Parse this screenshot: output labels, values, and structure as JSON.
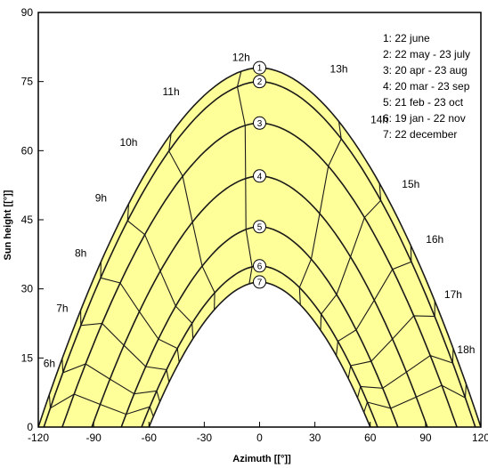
{
  "chart_data": {
    "type": "line",
    "title": "",
    "xlabel": "Azimuth [[°]]",
    "ylabel": "Sun height [[°]]",
    "xlim": [
      -120,
      120
    ],
    "ylim": [
      0,
      90
    ],
    "x_ticks": [
      "-120",
      "-90",
      "-60",
      "-30",
      "0",
      "30",
      "60",
      "90",
      "120"
    ],
    "y_ticks": [
      "0",
      "15",
      "30",
      "45",
      "60",
      "75",
      "90"
    ],
    "grid": false,
    "legend_position": "top-right",
    "fill_color": "#ffff99",
    "line_color": "#1a1a1a",
    "series": [
      {
        "id": "1",
        "name": "1: 22 june",
        "max_height": 78,
        "azimuth_at_horizon": 120
      },
      {
        "id": "2",
        "name": "2: 22 may - 23 july",
        "max_height": 75,
        "azimuth_at_horizon": 117
      },
      {
        "id": "3",
        "name": "3: 20 apr - 23 aug",
        "max_height": 66,
        "azimuth_at_horizon": 107
      },
      {
        "id": "4",
        "name": "4: 20 mar - 23 sep",
        "max_height": 54.5,
        "azimuth_at_horizon": 91
      },
      {
        "id": "5",
        "name": "5: 21 feb - 23 oct",
        "max_height": 43.5,
        "azimuth_at_horizon": 75
      },
      {
        "id": "6",
        "name": "6: 19 jan - 22 nov",
        "max_height": 35,
        "azimuth_at_horizon": 64
      },
      {
        "id": "7",
        "name": "7: 22 december",
        "max_height": 31.5,
        "azimuth_at_horizon": 60
      }
    ],
    "hour_labels": [
      {
        "label": "6h",
        "azimuth": -114,
        "height": 13
      },
      {
        "label": "7h",
        "azimuth": -107,
        "height": 25
      },
      {
        "label": "8h",
        "azimuth": -97,
        "height": 37
      },
      {
        "label": "9h",
        "azimuth": -86,
        "height": 49
      },
      {
        "label": "10h",
        "azimuth": -71,
        "height": 61
      },
      {
        "label": "11h",
        "azimuth": -48,
        "height": 72
      },
      {
        "label": "12h",
        "azimuth": -10,
        "height": 79.5
      },
      {
        "label": "13h",
        "azimuth": 43,
        "height": 77
      },
      {
        "label": "14h",
        "azimuth": 65,
        "height": 66
      },
      {
        "label": "15h",
        "azimuth": 82,
        "height": 52
      },
      {
        "label": "16h",
        "azimuth": 95,
        "height": 40
      },
      {
        "label": "17h",
        "azimuth": 105,
        "height": 28
      },
      {
        "label": "18h",
        "azimuth": 112,
        "height": 16
      }
    ]
  }
}
